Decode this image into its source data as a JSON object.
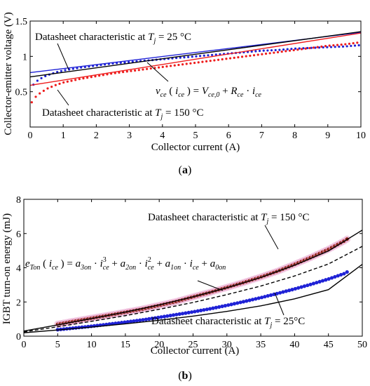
{
  "colors": {
    "blue": "#1f22d6",
    "red": "#ee1c1c",
    "black": "#000000",
    "darkred": "#8a2010",
    "pink": "#e8a0cc"
  },
  "chart_data": [
    {
      "type": "scatter",
      "panel_label": "(a)",
      "xlabel": "Collector current (A)",
      "ylabel": "Collector-emitter voltage (V)",
      "xlim": [
        0,
        10
      ],
      "ylim": [
        0.0,
        1.5
      ],
      "xticks": [
        "0",
        "1",
        "2",
        "3",
        "4",
        "5",
        "6",
        "7",
        "8",
        "9",
        "10"
      ],
      "yticks": [
        "0.5",
        "1",
        "1.5"
      ],
      "grid": false,
      "annotations": {
        "tj25_pre": "Datasheet characteristic at ",
        "tj25_post": " = 25 °C",
        "tj150_pre": "Datasheet characteristic at ",
        "tj150_post": " = 150 °C",
        "T": "T",
        "j": "j",
        "formula_v": "v",
        "formula_ce": "ce",
        "formula_open": " ( ",
        "formula_i": "i",
        "formula_ice_sub": "ce",
        "formula_close_eq": " ) = ",
        "formula_V": "V",
        "formula_ce0": "ce,0",
        "formula_plus": " + ",
        "formula_R": "R",
        "formula_Rce": "ce",
        "formula_dot": " · ",
        "formula_i2": "i",
        "formula_i2sub": "ce"
      },
      "series": [
        {
          "color": "blue",
          "style": "markers",
          "x": [
            0.1,
            0.25,
            0.5,
            0.75,
            1,
            1.5,
            2,
            2.5,
            3,
            3.5,
            4,
            4.5,
            5,
            5.5,
            6,
            6.5,
            7,
            7.5,
            8,
            8.5,
            9,
            9.5,
            10
          ],
          "y": [
            0.6,
            0.67,
            0.73,
            0.77,
            0.8,
            0.84,
            0.87,
            0.9,
            0.92,
            0.94,
            0.96,
            0.98,
            1.0,
            1.02,
            1.04,
            1.06,
            1.08,
            1.09,
            1.11,
            1.12,
            1.13,
            1.14,
            1.16
          ]
        },
        {
          "color": "red",
          "style": "markers",
          "x": [
            0.05,
            0.15,
            0.3,
            0.5,
            0.75,
            1,
            1.5,
            2,
            2.5,
            3,
            3.5,
            4,
            4.5,
            5,
            5.5,
            6,
            6.5,
            7,
            7.5,
            8,
            8.5,
            9,
            9.5,
            10
          ],
          "y": [
            0.35,
            0.42,
            0.48,
            0.54,
            0.59,
            0.63,
            0.68,
            0.72,
            0.76,
            0.79,
            0.82,
            0.85,
            0.88,
            0.91,
            0.94,
            0.97,
            1.0,
            1.03,
            1.06,
            1.09,
            1.12,
            1.15,
            1.17,
            1.2
          ]
        },
        {
          "color": "blue",
          "style": "line",
          "x": [
            0,
            10
          ],
          "y": [
            0.77,
            1.34
          ]
        },
        {
          "color": "black",
          "style": "line",
          "x": [
            0,
            10
          ],
          "y": [
            0.71,
            1.35
          ]
        },
        {
          "color": "red",
          "style": "line",
          "x": [
            0,
            10
          ],
          "y": [
            0.59,
            1.33
          ]
        }
      ]
    },
    {
      "type": "scatter",
      "panel_label": "(b)",
      "xlabel": "Collector current (A)",
      "ylabel": "IGBT turn-on energy (mJ)",
      "xlim": [
        0,
        50
      ],
      "ylim": [
        0,
        8
      ],
      "xticks": [
        "0",
        "5",
        "10",
        "15",
        "20",
        "25",
        "30",
        "35",
        "40",
        "45",
        "50"
      ],
      "yticks": [
        "0",
        "2",
        "4",
        "6",
        "8"
      ],
      "grid": false,
      "annotations": {
        "tj150_pre": "Datasheet characteristic at ",
        "tj150_post": " = 150 °C",
        "tj25_pre": "Datasheet characteristic at ",
        "tj25_post": " = 25°C",
        "T": "T",
        "j": "j",
        "e": "e",
        "Ton": "Ton",
        "open": " ( ",
        "i": "i",
        "ce": "ce",
        "close_eq": " ) = ",
        "a3": "a",
        "a3sub": "3on",
        "a2": "a",
        "a2sub": "2on",
        "a1": "a",
        "a1sub": "1on",
        "a0": "a",
        "a0sub": "0on",
        "dot": " · ",
        "plus": " + ",
        "pow3": "3",
        "pow2": "2"
      },
      "series": [
        {
          "color": "darkred",
          "style": "markers",
          "x": [
            5,
            7.5,
            10,
            12.5,
            15,
            17.5,
            20,
            22.5,
            25,
            27.5,
            30,
            32.5,
            35,
            37.5,
            40,
            42.5,
            45,
            47.5,
            48
          ],
          "y": [
            0.7,
            0.88,
            1.05,
            1.22,
            1.4,
            1.58,
            1.8,
            2.02,
            2.3,
            2.56,
            2.85,
            3.14,
            3.46,
            3.8,
            4.2,
            4.62,
            5.08,
            5.6,
            5.75
          ]
        },
        {
          "color": "blue",
          "style": "markers",
          "x": [
            5,
            7.5,
            10,
            12.5,
            15,
            17.5,
            20,
            22.5,
            25,
            27.5,
            30,
            32.5,
            35,
            37.5,
            40,
            42.5,
            45,
            47.5,
            48
          ],
          "y": [
            0.38,
            0.48,
            0.58,
            0.7,
            0.82,
            0.95,
            1.1,
            1.26,
            1.42,
            1.6,
            1.8,
            2.02,
            2.25,
            2.5,
            2.76,
            3.04,
            3.34,
            3.68,
            3.82
          ]
        },
        {
          "color": "black",
          "style": "line",
          "x": [
            0,
            5,
            10,
            15,
            20,
            25,
            30,
            35,
            40,
            45,
            50
          ],
          "y": [
            0.3,
            0.66,
            1.03,
            1.41,
            1.83,
            2.3,
            2.83,
            3.43,
            4.15,
            4.98,
            6.2
          ]
        },
        {
          "color": "black",
          "style": "dashed",
          "x": [
            0,
            5,
            10,
            15,
            20,
            25,
            30,
            35,
            40,
            45,
            50
          ],
          "y": [
            0.25,
            0.55,
            0.87,
            1.2,
            1.57,
            1.97,
            2.43,
            2.93,
            3.52,
            4.22,
            5.25
          ]
        },
        {
          "color": "black",
          "style": "line",
          "x": [
            0,
            5,
            10,
            15,
            20,
            25,
            30,
            35,
            40,
            45,
            50
          ],
          "y": [
            0.2,
            0.36,
            0.53,
            0.72,
            0.93,
            1.17,
            1.45,
            1.77,
            2.18,
            2.72,
            4.2
          ]
        }
      ]
    }
  ]
}
